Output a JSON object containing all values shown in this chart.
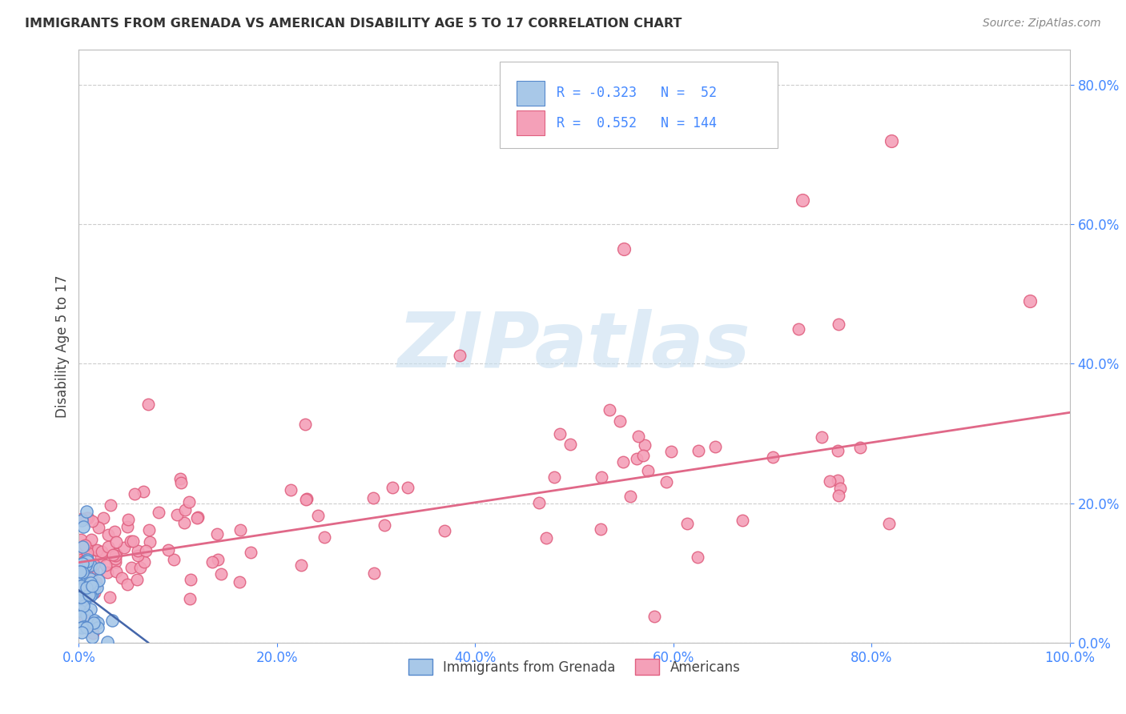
{
  "title": "IMMIGRANTS FROM GRENADA VS AMERICAN DISABILITY AGE 5 TO 17 CORRELATION CHART",
  "source": "Source: ZipAtlas.com",
  "ylabel": "Disability Age 5 to 17",
  "xlim": [
    0,
    1.0
  ],
  "ylim": [
    0,
    0.85
  ],
  "xticks": [
    0.0,
    0.2,
    0.4,
    0.6,
    0.8,
    1.0
  ],
  "xtick_labels": [
    "0.0%",
    "20.0%",
    "40.0%",
    "60.0%",
    "80.0%",
    "100.0%"
  ],
  "yticks": [
    0.0,
    0.2,
    0.4,
    0.6,
    0.8
  ],
  "ytick_labels": [
    "0.0%",
    "20.0%",
    "40.0%",
    "60.0%",
    "80.0%"
  ],
  "color_blue": "#a8c8e8",
  "color_blue_edge": "#5588cc",
  "color_pink": "#f4a0b8",
  "color_pink_edge": "#e06080",
  "color_blue_line": "#4466aa",
  "color_pink_line": "#e06888",
  "watermark_color": "#c8dff0",
  "background_color": "#ffffff",
  "grid_color": "#cccccc",
  "tick_color": "#4488ff",
  "title_color": "#333333",
  "source_color": "#888888",
  "ylabel_color": "#444444",
  "legend_box_color": "#dddddd",
  "pink_line_x0": 0.0,
  "pink_line_y0": 0.115,
  "pink_line_x1": 1.0,
  "pink_line_y1": 0.33,
  "blue_line_x0": 0.0,
  "blue_line_y0": 0.075,
  "blue_line_x1": 0.07,
  "blue_line_y1": 0.0
}
